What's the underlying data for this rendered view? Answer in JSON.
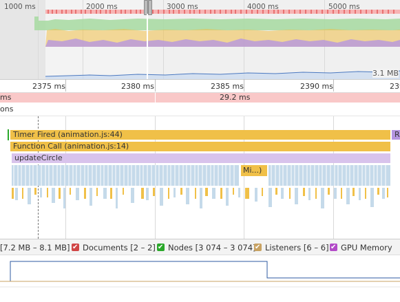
{
  "overview": {
    "ticks": [
      "1000 ms",
      "2000 ms",
      "3000 ms",
      "4000 ms",
      "5000 ms"
    ],
    "memory_label": "3.1 MB"
  },
  "ruler": {
    "ticks": [
      "2375 ms",
      "2380 ms",
      "2385 ms",
      "2390 ms",
      "239"
    ]
  },
  "frames": {
    "left_label": "ms",
    "center_label": "29.2 ms"
  },
  "interactions_label": "ons",
  "flame": {
    "timer_fired": "Timer Fired (animation.js:44)",
    "function_call": "Function Call (animation.js:14)",
    "update_circle": "updateCircle",
    "mi": "Mi...)",
    "right_stub": "R"
  },
  "legend": {
    "js_heap": "[7.2 MB – 8.1 MB]",
    "documents": "Documents [2 – 2]",
    "nodes": "Nodes [3 074 – 3 074]",
    "listeners": "Listeners [6 – 6]",
    "gpu_memory": "GPU Memory"
  },
  "colors": {
    "scripting": "#f0c048",
    "rendering": "#c9a0e8",
    "painting": "#8fd28f",
    "paint_light": "#c5daea",
    "frame_red": "#f9c8c8",
    "documents": "#d04545",
    "nodes": "#2aa82a",
    "listeners": "#c8a262",
    "gpu": "#b34bc8",
    "js_heap_line": "#2c5aa0"
  }
}
